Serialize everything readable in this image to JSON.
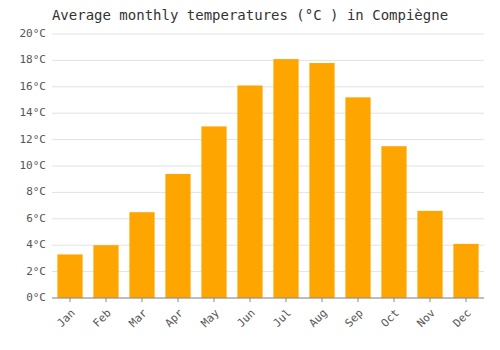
{
  "chart_data": {
    "type": "bar",
    "title": "Average monthly temperatures (°C ) in Compiègne",
    "categories": [
      "Jan",
      "Feb",
      "Mar",
      "Apr",
      "May",
      "Jun",
      "Jul",
      "Aug",
      "Sep",
      "Oct",
      "Nov",
      "Dec"
    ],
    "values": [
      3.3,
      4.0,
      6.5,
      9.4,
      13.0,
      16.1,
      18.1,
      17.8,
      15.2,
      11.5,
      6.6,
      4.1
    ],
    "color": "#FFA500",
    "ylim": [
      0,
      20
    ],
    "yticks": [
      {
        "value": 0,
        "label": "0°C"
      },
      {
        "value": 2,
        "label": "2°C"
      },
      {
        "value": 4,
        "label": "4°C"
      },
      {
        "value": 6,
        "label": "6°C"
      },
      {
        "value": 8,
        "label": "8°C"
      },
      {
        "value": 10,
        "label": "10°C"
      },
      {
        "value": 12,
        "label": "12°C"
      },
      {
        "value": 14,
        "label": "14°C"
      },
      {
        "value": 16,
        "label": "16°C"
      },
      {
        "value": 18,
        "label": "18°C"
      },
      {
        "value": 20,
        "label": "20°C"
      }
    ],
    "grid": true
  }
}
